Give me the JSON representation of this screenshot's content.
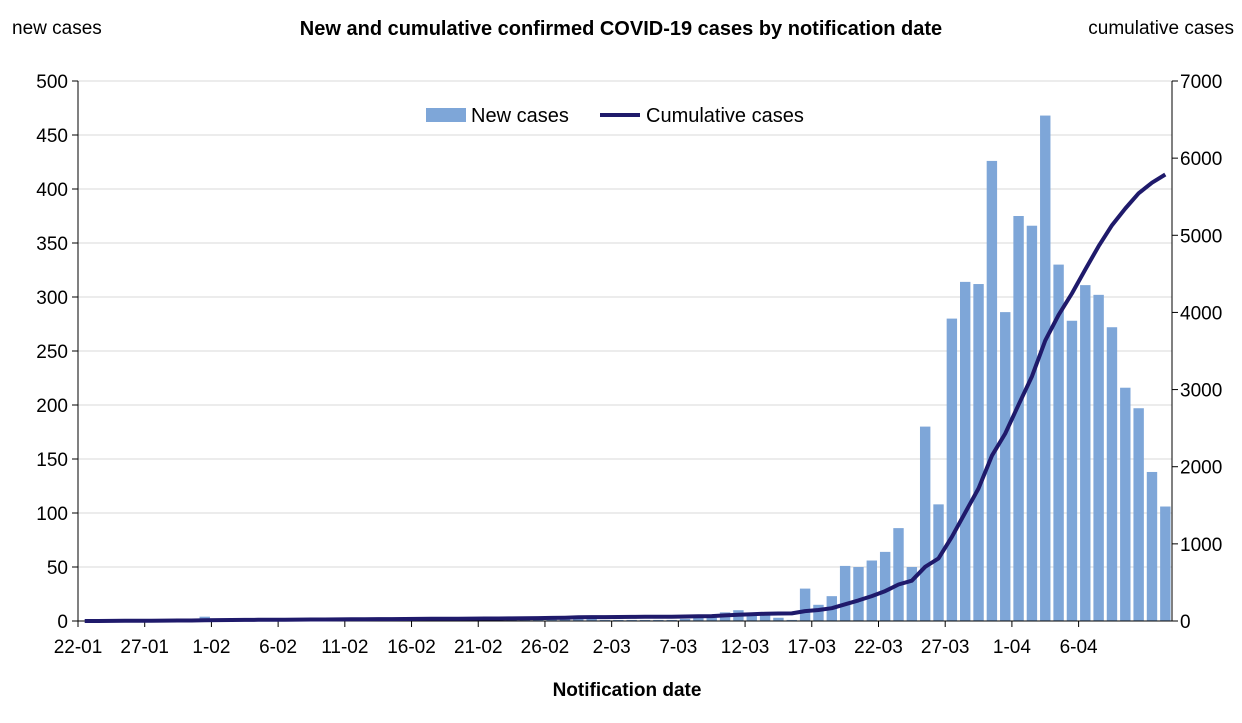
{
  "chart_data": {
    "type": "bar+line",
    "title": "New and cumulative confirmed COVID-19 cases by notification date",
    "y_left_label": "new cases",
    "y_right_label": "cumulative cases",
    "xlabel": "Notification date",
    "y_left_lim": [
      0,
      500
    ],
    "y_left_ticks": [
      0,
      50,
      100,
      150,
      200,
      250,
      300,
      350,
      400,
      450,
      500
    ],
    "y_right_lim": [
      0,
      7000
    ],
    "y_right_ticks": [
      0,
      1000,
      2000,
      3000,
      4000,
      5000,
      6000,
      7000
    ],
    "x_tick_labels": [
      "22-01",
      "27-01",
      "1-02",
      "6-02",
      "11-02",
      "16-02",
      "21-02",
      "26-02",
      "2-03",
      "7-03",
      "12-03",
      "17-03",
      "22-03",
      "27-03",
      "1-04",
      "6-04"
    ],
    "grid": "horizontal",
    "legend": {
      "position": "top-center",
      "entries": [
        "New cases",
        "Cumulative cases"
      ]
    },
    "colors": {
      "bars": "#7EA6D8",
      "line": "#1F1A6B",
      "grid": "#D9D9D9"
    },
    "series": [
      {
        "name": "New cases",
        "kind": "bar",
        "axis": "left",
        "values": [
          0,
          0,
          1,
          1,
          1,
          1,
          1,
          1,
          1,
          4,
          1,
          1,
          1,
          1,
          1,
          1,
          1,
          1,
          1,
          1,
          1,
          1,
          1,
          1,
          1,
          1,
          1,
          1,
          1,
          1,
          1,
          1,
          1,
          2,
          2,
          2,
          3,
          5,
          2,
          1,
          1,
          1,
          1,
          1,
          1,
          2,
          3,
          3,
          8,
          10,
          6,
          6,
          3,
          1,
          30,
          15,
          23,
          51,
          50,
          56,
          64,
          86,
          50,
          180,
          108,
          280,
          314,
          312,
          426,
          286,
          375,
          366,
          468,
          330,
          278,
          311,
          302,
          272,
          216,
          197,
          138,
          106
        ]
      },
      {
        "name": "Cumulative cases",
        "kind": "line",
        "axis": "right",
        "values": [
          0,
          0,
          1,
          2,
          3,
          4,
          5,
          6,
          7,
          11,
          12,
          13,
          14,
          15,
          16,
          17,
          18,
          19,
          20,
          21,
          22,
          23,
          24,
          25,
          26,
          27,
          28,
          29,
          30,
          31,
          32,
          33,
          34,
          36,
          38,
          40,
          43,
          48,
          50,
          51,
          52,
          53,
          54,
          55,
          56,
          58,
          61,
          64,
          72,
          82,
          88,
          94,
          97,
          98,
          128,
          143,
          166,
          217,
          267,
          323,
          387,
          473,
          523,
          703,
          811,
          1091,
          1405,
          1717,
          2143,
          2429,
          2804,
          3170,
          3638,
          3968,
          4246,
          4557,
          4859,
          5131,
          5347,
          5544,
          5682,
          5788
        ]
      }
    ]
  }
}
